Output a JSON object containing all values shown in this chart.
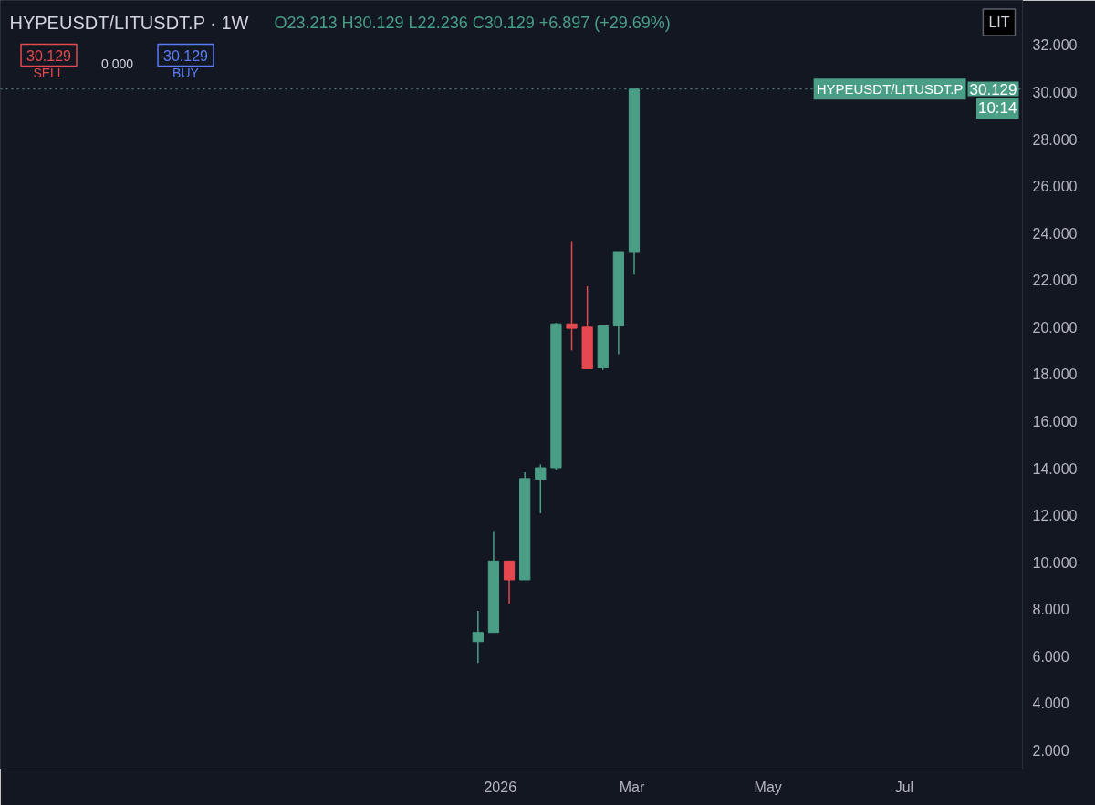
{
  "chart_data": {
    "type": "candlestick",
    "title": "HYPEUSDT/LITUSDT.P · 1W",
    "x": [
      "2025-12-22",
      "2025-12-29",
      "2026-01-05",
      "2026-01-12",
      "2026-01-19",
      "2026-01-26",
      "2026-02-02",
      "2026-02-09",
      "2026-02-16",
      "2026-02-23",
      "2026-03-02"
    ],
    "ohlc": [
      [
        6.62,
        7.93,
        5.71,
        7.01
      ],
      [
        7.01,
        11.32,
        7.01,
        10.05
      ],
      [
        10.05,
        10.05,
        8.23,
        9.25
      ],
      [
        9.25,
        13.83,
        9.25,
        13.56
      ],
      [
        13.53,
        14.16,
        12.08,
        14.02
      ],
      [
        14.02,
        20.18,
        13.93,
        20.14
      ],
      [
        20.14,
        23.66,
        19.01,
        19.95
      ],
      [
        20.0,
        21.74,
        18.23,
        18.23
      ],
      [
        18.27,
        20.05,
        18.18,
        20.05
      ],
      [
        20.05,
        23.213,
        18.85,
        23.213
      ],
      [
        23.213,
        30.129,
        22.236,
        30.129
      ]
    ],
    "colors": [
      "#4a9e86",
      "#4a9e86",
      "#e5484f",
      "#4a9e86",
      "#4a9e86",
      "#4a9e86",
      "#e5484f",
      "#e5484f",
      "#4a9e86",
      "#4a9e86",
      "#4a9e86"
    ],
    "xlim": [
      "2025-05-22",
      "2026-08-23"
    ],
    "xticks": [
      {
        "value": "2026-01-01",
        "label": "2026"
      },
      {
        "value": "2026-03-01",
        "label": "Mar"
      },
      {
        "value": "2026-05-01",
        "label": "May"
      },
      {
        "value": "2026-07-01",
        "label": "Jul"
      }
    ],
    "ylim": [
      1.2,
      33.9
    ],
    "yticks": [
      {
        "value": 2,
        "label": "2.000"
      },
      {
        "value": 4,
        "label": "4.000"
      },
      {
        "value": 6,
        "label": "6.000"
      },
      {
        "value": 8,
        "label": "8.000"
      },
      {
        "value": 10,
        "label": "10.000"
      },
      {
        "value": 12,
        "label": "12.000"
      },
      {
        "value": 14,
        "label": "14.000"
      },
      {
        "value": 16,
        "label": "16.000"
      },
      {
        "value": 18,
        "label": "18.000"
      },
      {
        "value": 20,
        "label": "20.000"
      },
      {
        "value": 22,
        "label": "22.000"
      },
      {
        "value": 24,
        "label": "24.000"
      },
      {
        "value": 26,
        "label": "26.000"
      },
      {
        "value": 28,
        "label": "28.000"
      },
      {
        "value": 30,
        "label": "30.000"
      },
      {
        "value": 32,
        "label": "32.000"
      }
    ],
    "ref_lines": [
      {
        "axis": "y",
        "value": 30.129,
        "label": "HYPEUSDT/LITUSDT.P",
        "color": "#4a9e86",
        "line_style": "dotted"
      }
    ],
    "annotations": [
      "O23.213  H30.129  L22.236  C30.129  +6.897 (+29.69%)",
      "30.129",
      "SELL",
      "0.000",
      "30.129",
      "BUY",
      "LIT",
      "30.129",
      "10:14"
    ],
    "grid": false
  }
}
